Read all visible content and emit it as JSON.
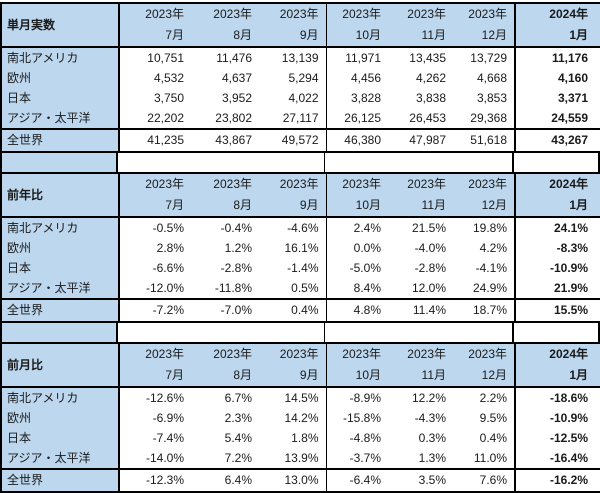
{
  "colors": {
    "header_fill": "#BDD7EE",
    "label_fill": "#BDD7EE",
    "border": "#000000",
    "text": "#1a1a1a"
  },
  "columns": {
    "years": [
      "2023年",
      "2023年",
      "2023年",
      "2023年",
      "2023年",
      "2023年",
      "2024年"
    ],
    "months": [
      "7月",
      "8月",
      "9月",
      "10月",
      "11月",
      "12月",
      "1月"
    ]
  },
  "sections": [
    {
      "title": "単月実数",
      "rows": [
        {
          "label": "南北アメリカ",
          "values": [
            "10,751",
            "11,476",
            "13,139",
            "11,971",
            "13,435",
            "13,729",
            "11,176"
          ]
        },
        {
          "label": "欧州",
          "values": [
            "4,532",
            "4,637",
            "5,294",
            "4,456",
            "4,262",
            "4,668",
            "4,160"
          ]
        },
        {
          "label": "日本",
          "values": [
            "3,750",
            "3,952",
            "4,022",
            "3,828",
            "3,838",
            "3,853",
            "3,371"
          ]
        },
        {
          "label": "アジア・太平洋",
          "values": [
            "22,202",
            "23,802",
            "27,117",
            "26,125",
            "26,453",
            "29,368",
            "24,559"
          ]
        }
      ],
      "total": {
        "label": "全世界",
        "values": [
          "41,235",
          "43,867",
          "49,572",
          "46,380",
          "47,987",
          "51,618",
          "43,267"
        ]
      }
    },
    {
      "title": "前年比",
      "rows": [
        {
          "label": "南北アメリカ",
          "values": [
            "-0.5%",
            "-0.4%",
            "-4.6%",
            "2.4%",
            "21.5%",
            "19.8%",
            "24.1%"
          ]
        },
        {
          "label": "欧州",
          "values": [
            "2.8%",
            "1.2%",
            "16.1%",
            "0.0%",
            "-4.0%",
            "4.2%",
            "-8.3%"
          ]
        },
        {
          "label": "日本",
          "values": [
            "-6.6%",
            "-2.8%",
            "-1.4%",
            "-5.0%",
            "-2.8%",
            "-4.1%",
            "-10.9%"
          ]
        },
        {
          "label": "アジア・太平洋",
          "values": [
            "-12.0%",
            "-11.8%",
            "0.5%",
            "8.4%",
            "12.0%",
            "24.9%",
            "21.9%"
          ]
        }
      ],
      "total": {
        "label": "全世界",
        "values": [
          "-7.2%",
          "-7.0%",
          "0.4%",
          "4.8%",
          "11.4%",
          "18.7%",
          "15.5%"
        ]
      }
    },
    {
      "title": "前月比",
      "rows": [
        {
          "label": "南北アメリカ",
          "values": [
            "-12.6%",
            "6.7%",
            "14.5%",
            "-8.9%",
            "12.2%",
            "2.2%",
            "-18.6%"
          ]
        },
        {
          "label": "欧州",
          "values": [
            "-6.9%",
            "2.3%",
            "14.2%",
            "-15.8%",
            "-4.3%",
            "9.5%",
            "-10.9%"
          ]
        },
        {
          "label": "日本",
          "values": [
            "-7.4%",
            "5.4%",
            "1.8%",
            "-4.8%",
            "0.3%",
            "0.4%",
            "-12.5%"
          ]
        },
        {
          "label": "アジア・太平洋",
          "values": [
            "-14.0%",
            "7.2%",
            "13.9%",
            "-3.7%",
            "1.3%",
            "11.0%",
            "-16.4%"
          ]
        }
      ],
      "total": {
        "label": "全世界",
        "values": [
          "-12.3%",
          "6.4%",
          "13.0%",
          "-6.4%",
          "3.5%",
          "7.6%",
          "-16.2%"
        ]
      }
    }
  ]
}
